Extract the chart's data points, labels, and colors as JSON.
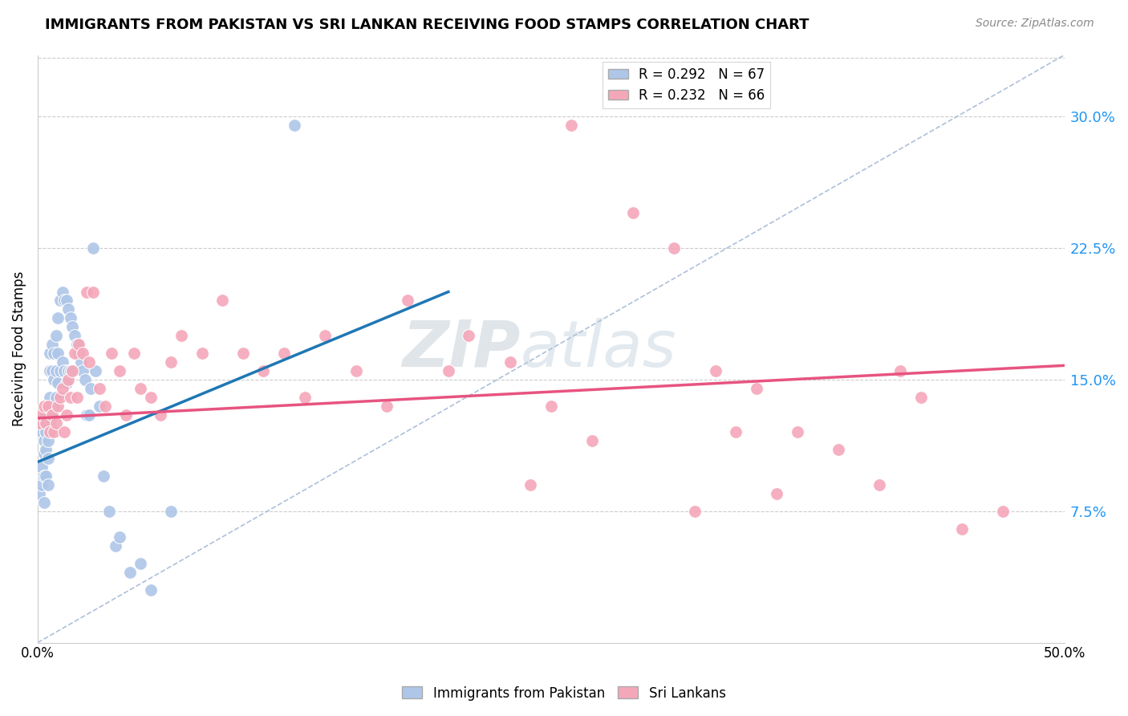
{
  "title": "IMMIGRANTS FROM PAKISTAN VS SRI LANKAN RECEIVING FOOD STAMPS CORRELATION CHART",
  "source": "Source: ZipAtlas.com",
  "ylabel": "Receiving Food Stamps",
  "ytick_values": [
    0.075,
    0.15,
    0.225,
    0.3
  ],
  "xlim": [
    0,
    0.5
  ],
  "ylim": [
    0.0,
    0.335
  ],
  "color_pakistan": "#aec6e8",
  "color_srilanka": "#f4a7b9",
  "color_line_pakistan": "#1f77b4",
  "color_line_srilanka": "#e75480",
  "color_diag": "#9ab0d0",
  "watermark_zip": "ZIP",
  "watermark_atlas": "atlas",
  "pakistan_x": [
    0.001,
    0.001,
    0.002,
    0.002,
    0.002,
    0.003,
    0.003,
    0.003,
    0.003,
    0.004,
    0.004,
    0.004,
    0.004,
    0.005,
    0.005,
    0.005,
    0.005,
    0.006,
    0.006,
    0.006,
    0.006,
    0.007,
    0.007,
    0.007,
    0.008,
    0.008,
    0.008,
    0.009,
    0.009,
    0.009,
    0.01,
    0.01,
    0.01,
    0.011,
    0.011,
    0.012,
    0.012,
    0.013,
    0.013,
    0.014,
    0.014,
    0.015,
    0.015,
    0.016,
    0.016,
    0.017,
    0.018,
    0.019,
    0.02,
    0.021,
    0.022,
    0.023,
    0.024,
    0.025,
    0.026,
    0.027,
    0.028,
    0.03,
    0.032,
    0.035,
    0.038,
    0.04,
    0.045,
    0.05,
    0.055,
    0.065,
    0.125
  ],
  "pakistan_y": [
    0.095,
    0.085,
    0.12,
    0.1,
    0.09,
    0.115,
    0.108,
    0.095,
    0.08,
    0.13,
    0.12,
    0.11,
    0.095,
    0.125,
    0.115,
    0.105,
    0.09,
    0.165,
    0.155,
    0.14,
    0.125,
    0.17,
    0.155,
    0.13,
    0.165,
    0.15,
    0.135,
    0.175,
    0.155,
    0.14,
    0.185,
    0.165,
    0.148,
    0.195,
    0.155,
    0.2,
    0.16,
    0.195,
    0.155,
    0.195,
    0.148,
    0.19,
    0.155,
    0.185,
    0.155,
    0.18,
    0.175,
    0.17,
    0.165,
    0.16,
    0.155,
    0.15,
    0.13,
    0.13,
    0.145,
    0.225,
    0.155,
    0.135,
    0.095,
    0.075,
    0.055,
    0.06,
    0.04,
    0.045,
    0.03,
    0.075,
    0.295
  ],
  "srilanka_x": [
    0.001,
    0.002,
    0.003,
    0.004,
    0.005,
    0.006,
    0.007,
    0.008,
    0.009,
    0.01,
    0.011,
    0.012,
    0.013,
    0.014,
    0.015,
    0.016,
    0.017,
    0.018,
    0.019,
    0.02,
    0.022,
    0.024,
    0.025,
    0.027,
    0.03,
    0.033,
    0.036,
    0.04,
    0.043,
    0.047,
    0.05,
    0.055,
    0.06,
    0.065,
    0.07,
    0.08,
    0.09,
    0.1,
    0.11,
    0.12,
    0.13,
    0.14,
    0.155,
    0.17,
    0.18,
    0.2,
    0.21,
    0.23,
    0.25,
    0.27,
    0.29,
    0.31,
    0.33,
    0.35,
    0.37,
    0.39,
    0.41,
    0.43,
    0.45,
    0.47,
    0.24,
    0.32,
    0.36,
    0.42,
    0.26,
    0.34
  ],
  "srilanka_y": [
    0.125,
    0.13,
    0.135,
    0.125,
    0.135,
    0.12,
    0.13,
    0.12,
    0.125,
    0.135,
    0.14,
    0.145,
    0.12,
    0.13,
    0.15,
    0.14,
    0.155,
    0.165,
    0.14,
    0.17,
    0.165,
    0.2,
    0.16,
    0.2,
    0.145,
    0.135,
    0.165,
    0.155,
    0.13,
    0.165,
    0.145,
    0.14,
    0.13,
    0.16,
    0.175,
    0.165,
    0.195,
    0.165,
    0.155,
    0.165,
    0.14,
    0.175,
    0.155,
    0.135,
    0.195,
    0.155,
    0.175,
    0.16,
    0.135,
    0.115,
    0.245,
    0.225,
    0.155,
    0.145,
    0.12,
    0.11,
    0.09,
    0.14,
    0.065,
    0.075,
    0.09,
    0.075,
    0.085,
    0.155,
    0.295,
    0.12
  ],
  "pak_line_x": [
    0.0,
    0.2
  ],
  "pak_line_y": [
    0.103,
    0.2
  ],
  "sl_line_x": [
    0.0,
    0.5
  ],
  "sl_line_y": [
    0.128,
    0.158
  ]
}
